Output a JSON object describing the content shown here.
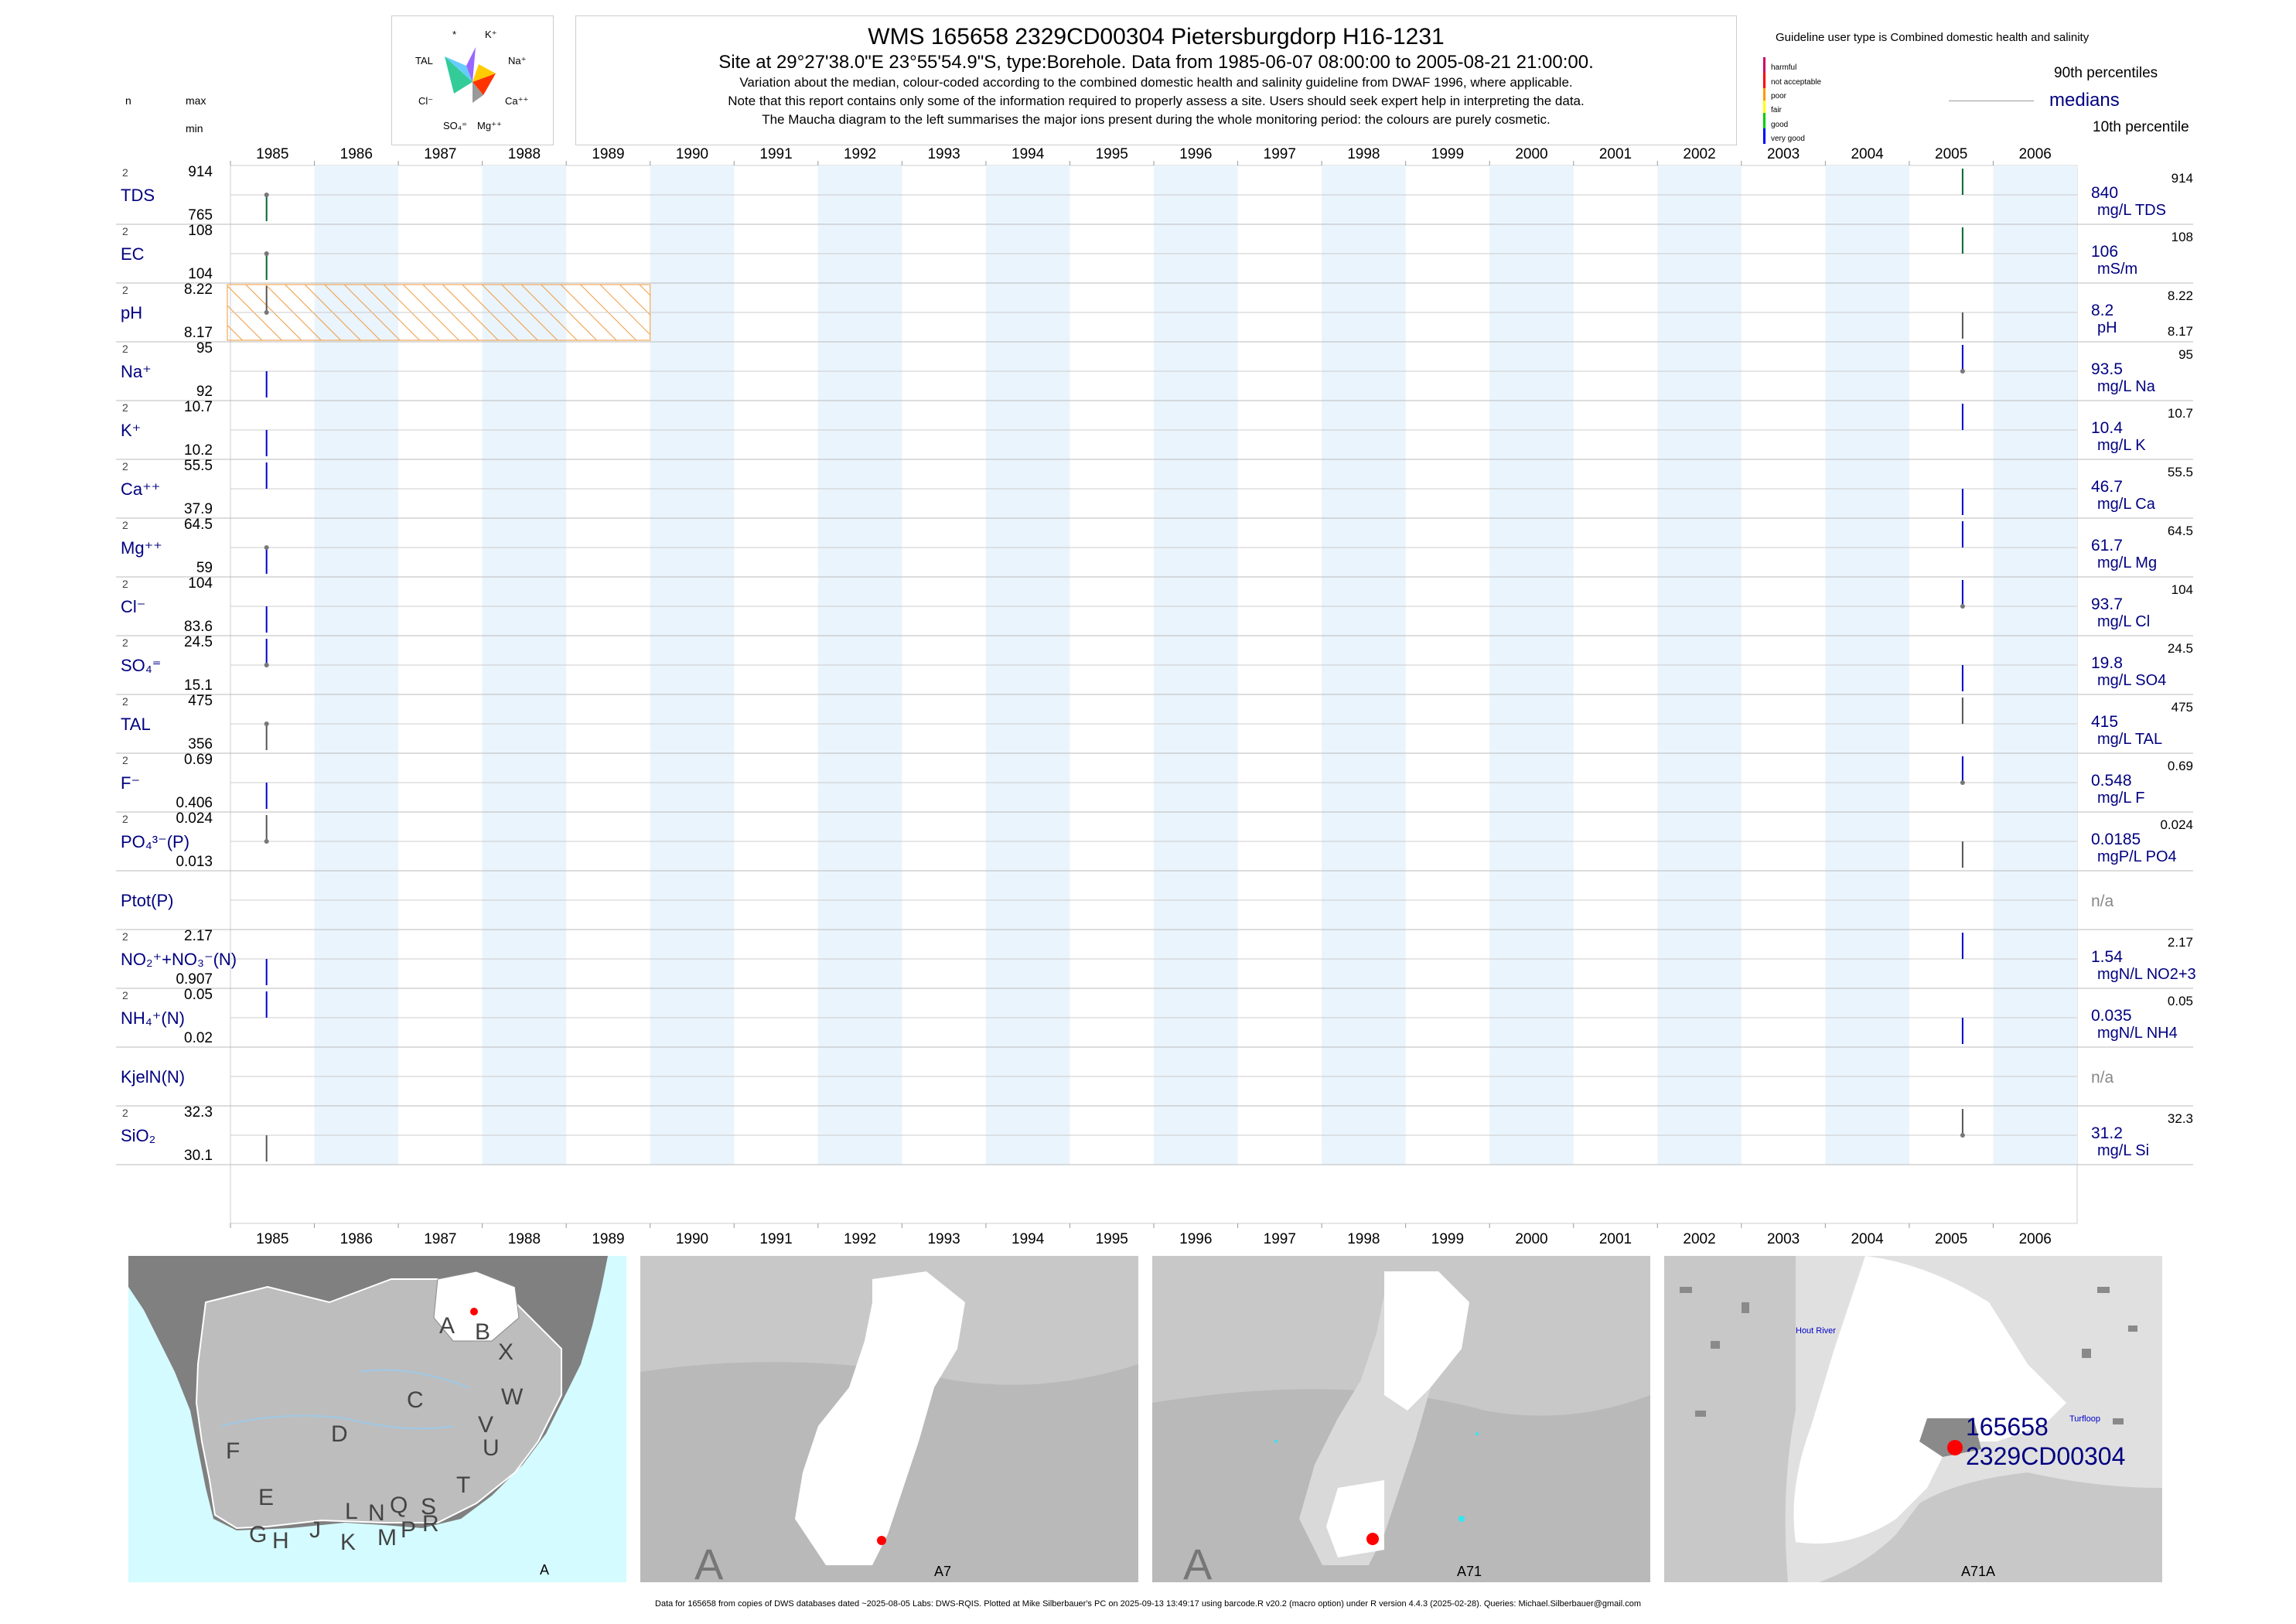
{
  "header": {
    "title": "WMS 165658 2329CD00304 Pietersburgdorp H16-1231",
    "subtitle": "Site at 29°27'38.0\"E 23°55'54.9\"S, type:Borehole.  Data from 1985-06-07 08:00:00 to 2005-08-21 21:00:00.",
    "note1": "Variation about the median,  colour-coded according to the combined domestic health and salinity guideline from DWAF 1996, where applicable.",
    "note2": "Note that this report contains only some of the information required to properly assess a site. Users should seek expert help in interpreting the data.",
    "note3": "The Maucha diagram to the left summarises the major ions present during the whole monitoring period: the colours are purely cosmetic."
  },
  "maucha": {
    "labels": [
      "*",
      "K⁺",
      "TAL",
      "Na⁺",
      "Cl⁻",
      "Ca⁺⁺",
      "SO₄⁼",
      "Mg⁺⁺"
    ],
    "colors": [
      "#66ccff",
      "#9966ff",
      "#ffcc00",
      "#ff3300",
      "#33cc99",
      "#999999"
    ]
  },
  "legend": {
    "guideline_text": "Guideline user type is Combined domestic health and salinity",
    "levels": [
      {
        "label": "harmful",
        "color": "#cc0066"
      },
      {
        "label": "not acceptable",
        "color": "#ff0000"
      },
      {
        "label": "poor",
        "color": "#ff9900"
      },
      {
        "label": "fair",
        "color": "#ffff00"
      },
      {
        "label": "good",
        "color": "#00cc00"
      },
      {
        "label": "very good",
        "color": "#0000ff"
      }
    ],
    "p90": "90th percentiles",
    "medians": "medians",
    "p10": "10th percentile"
  },
  "column_heads": {
    "n": "n",
    "max": "max",
    "min": "min"
  },
  "chart_data": {
    "type": "line",
    "x_axis": {
      "start_year": 1985,
      "end_year": 2006,
      "tick_labels": [
        "1985",
        "1986",
        "1987",
        "1988",
        "1989",
        "1990",
        "1991",
        "1992",
        "1993",
        "1994",
        "1995",
        "1996",
        "1997",
        "1998",
        "1999",
        "2000",
        "2001",
        "2002",
        "2003",
        "2004",
        "2005",
        "2006"
      ]
    },
    "sample_dates": [
      "1985-06-07",
      "2005-08-21"
    ],
    "hatched_period": {
      "from": "1985-01-01",
      "to": "1990-01-01",
      "variable": "pH"
    },
    "series": [
      {
        "name": "TDS",
        "n": "2",
        "max": "914",
        "min": "765",
        "median": "840",
        "unit": "mg/L TDS",
        "rmax": "914",
        "rmin": "",
        "color": "#006633",
        "marker_at": "1985"
      },
      {
        "name": "EC",
        "n": "2",
        "max": "108",
        "min": "104",
        "median": "106",
        "unit": "mS/m",
        "rmax": "108",
        "rmin": "",
        "color": "#006633",
        "marker_at": "1985"
      },
      {
        "name": "pH",
        "n": "2",
        "max": "8.22",
        "min": "8.17",
        "median": "8.2",
        "unit": "pH",
        "rmax": "8.22",
        "rmin": "8.17",
        "color": "#555555",
        "marker_at": "1985"
      },
      {
        "name": "Na⁺",
        "n": "2",
        "max": "95",
        "min": "92",
        "median": "93.5",
        "unit": "mg/L Na",
        "rmax": "95",
        "rmin": "",
        "color": "#0000cc",
        "marker_at": "2005"
      },
      {
        "name": "K⁺",
        "n": "2",
        "max": "10.7",
        "min": "10.2",
        "median": "10.4",
        "unit": "mg/L K",
        "rmax": "10.7",
        "rmin": "",
        "color": "#0000cc",
        "marker_at": "none"
      },
      {
        "name": "Ca⁺⁺",
        "n": "2",
        "max": "55.5",
        "min": "37.9",
        "median": "46.7",
        "unit": "mg/L Ca",
        "rmax": "55.5",
        "rmin": "",
        "color": "#0000cc",
        "marker_at": "none"
      },
      {
        "name": "Mg⁺⁺",
        "n": "2",
        "max": "64.5",
        "min": "59",
        "median": "61.7",
        "unit": "mg/L Mg",
        "rmax": "64.5",
        "rmin": "",
        "color": "#0000cc",
        "marker_at": "1985"
      },
      {
        "name": "Cl⁻",
        "n": "2",
        "max": "104",
        "min": "83.6",
        "median": "93.7",
        "unit": "mg/L Cl",
        "rmax": "104",
        "rmin": "",
        "color": "#0000cc",
        "marker_at": "2005"
      },
      {
        "name": "SO₄⁼",
        "n": "2",
        "max": "24.5",
        "min": "15.1",
        "median": "19.8",
        "unit": "mg/L SO4",
        "rmax": "24.5",
        "rmin": "",
        "color": "#0000cc",
        "marker_at": "1985"
      },
      {
        "name": "TAL",
        "n": "2",
        "max": "475",
        "min": "356",
        "median": "415",
        "unit": "mg/L TAL",
        "rmax": "475",
        "rmin": "",
        "color": "#555555",
        "marker_at": "1985"
      },
      {
        "name": "F⁻",
        "n": "2",
        "max": "0.69",
        "min": "0.406",
        "median": "0.548",
        "unit": "mg/L F",
        "rmax": "0.69",
        "rmin": "",
        "color": "#0000cc",
        "marker_at": "2005"
      },
      {
        "name": "PO₄³⁻(P)",
        "n": "2",
        "max": "0.024",
        "min": "0.013",
        "median": "0.0185",
        "unit": "mgP/L PO4",
        "rmax": "0.024",
        "rmin": "",
        "color": "#555555",
        "marker_at": "1985"
      },
      {
        "name": "Ptot(P)",
        "n": "",
        "max": "",
        "min": "",
        "median": "n/a",
        "unit": "",
        "rmax": "",
        "rmin": "",
        "color": "#555555",
        "marker_at": "none"
      },
      {
        "name": "NO₂⁺+NO₃⁻(N)",
        "n": "2",
        "max": "2.17",
        "min": "0.907",
        "median": "1.54",
        "unit": "mgN/L NO2+3",
        "rmax": "2.17",
        "rmin": "",
        "color": "#0000cc",
        "marker_at": "none"
      },
      {
        "name": "NH₄⁺(N)",
        "n": "2",
        "max": "0.05",
        "min": "0.02",
        "median": "0.035",
        "unit": "mgN/L NH4",
        "rmax": "0.05",
        "rmin": "",
        "color": "#0000cc",
        "marker_at": "none"
      },
      {
        "name": "KjelN(N)",
        "n": "",
        "max": "",
        "min": "",
        "median": "n/a",
        "unit": "",
        "rmax": "",
        "rmin": "",
        "color": "#555555",
        "marker_at": "none"
      },
      {
        "name": "SiO₂",
        "n": "2",
        "max": "32.3",
        "min": "30.1",
        "median": "31.2",
        "unit": "mg/L Si",
        "rmax": "32.3",
        "rmin": "",
        "color": "#555555",
        "marker_at": "2005"
      }
    ]
  },
  "maps": [
    {
      "label": "A",
      "letters": [
        "A",
        "B",
        "X",
        "C",
        "W",
        "D",
        "V",
        "U",
        "F",
        "T",
        "E",
        "L",
        "N",
        "Q",
        "S",
        "R",
        "G",
        "H",
        "J",
        "K",
        "M",
        "P"
      ]
    },
    {
      "label": "A7",
      "corner": "A"
    },
    {
      "label": "A71",
      "corner": "A"
    },
    {
      "label": "A71A",
      "site_id": "165658",
      "site_code": "2329CD00304",
      "place1": "Hout River",
      "place2": "Turfloop"
    }
  ],
  "footer": "Data for 165658 from copies of DWS databases dated ~2025-08-05 Labs: DWS-RQIS. Plotted at Mike Silberbauer's PC on 2025-09-13 13:49:17 using barcode.R v20.2 (macro option) under R version 4.4.3 (2025-02-28). Queries: Michael.Silberbauer@gmail.com"
}
